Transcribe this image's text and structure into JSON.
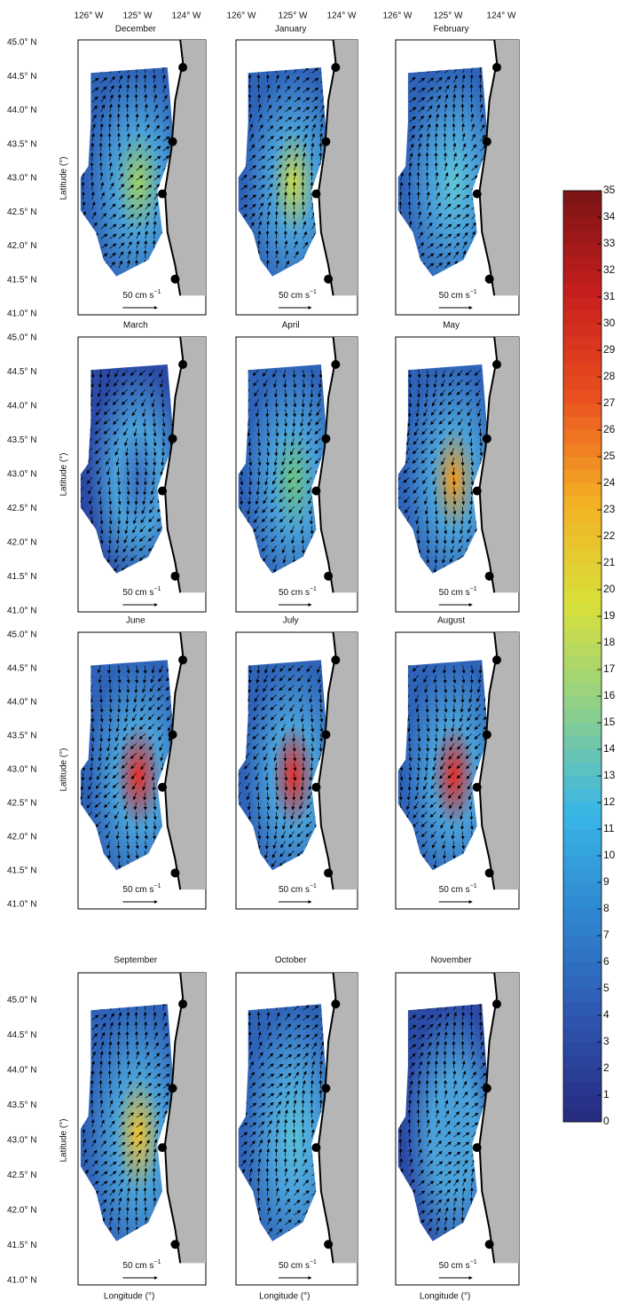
{
  "figure": {
    "panels": [
      {
        "title": "December",
        "accent": "#9fd068"
      },
      {
        "title": "January",
        "accent": "#c9d94f"
      },
      {
        "title": "February",
        "accent": "#5fc6d8"
      },
      {
        "title": "March",
        "accent": "#3a6fc0"
      },
      {
        "title": "April",
        "accent": "#6cc486"
      },
      {
        "title": "May",
        "accent": "#f29b22"
      },
      {
        "title": "June",
        "accent": "#e4302a"
      },
      {
        "title": "July",
        "accent": "#e4302a"
      },
      {
        "title": "August",
        "accent": "#e4302a"
      },
      {
        "title": "September",
        "accent": "#f0c330"
      },
      {
        "title": "October",
        "accent": "#58c0d8"
      },
      {
        "title": "November",
        "accent": "#4a9ed8"
      }
    ],
    "lon_ticks": [
      "126° W",
      "125° W",
      "124° W"
    ],
    "lat_ticks": [
      "45.0° N",
      "44.5° N",
      "44.0° N",
      "43.5° N",
      "43.0° N",
      "42.5° N",
      "42.0° N",
      "41.5° N",
      "41.0° N"
    ],
    "y_label": "Latitude (°)",
    "x_label": "Longitude (°)",
    "scale_label": "50 cm s",
    "scale_exp": "−1",
    "colorbar": {
      "lim": [
        0,
        35
      ],
      "ticks": [
        0,
        1,
        2,
        3,
        4,
        5,
        6,
        7,
        8,
        9,
        10,
        11,
        12,
        13,
        14,
        15,
        16,
        17,
        18,
        19,
        20,
        21,
        22,
        23,
        24,
        25,
        26,
        27,
        28,
        29,
        30,
        31,
        32,
        33,
        34,
        35
      ],
      "colormap": [
        "#262a7e",
        "#2e56b0",
        "#2f86cf",
        "#39b6e6",
        "#8fd08a",
        "#d8e03a",
        "#f4b024",
        "#ea5020",
        "#c81e1e",
        "#7a1414"
      ]
    }
  }
}
